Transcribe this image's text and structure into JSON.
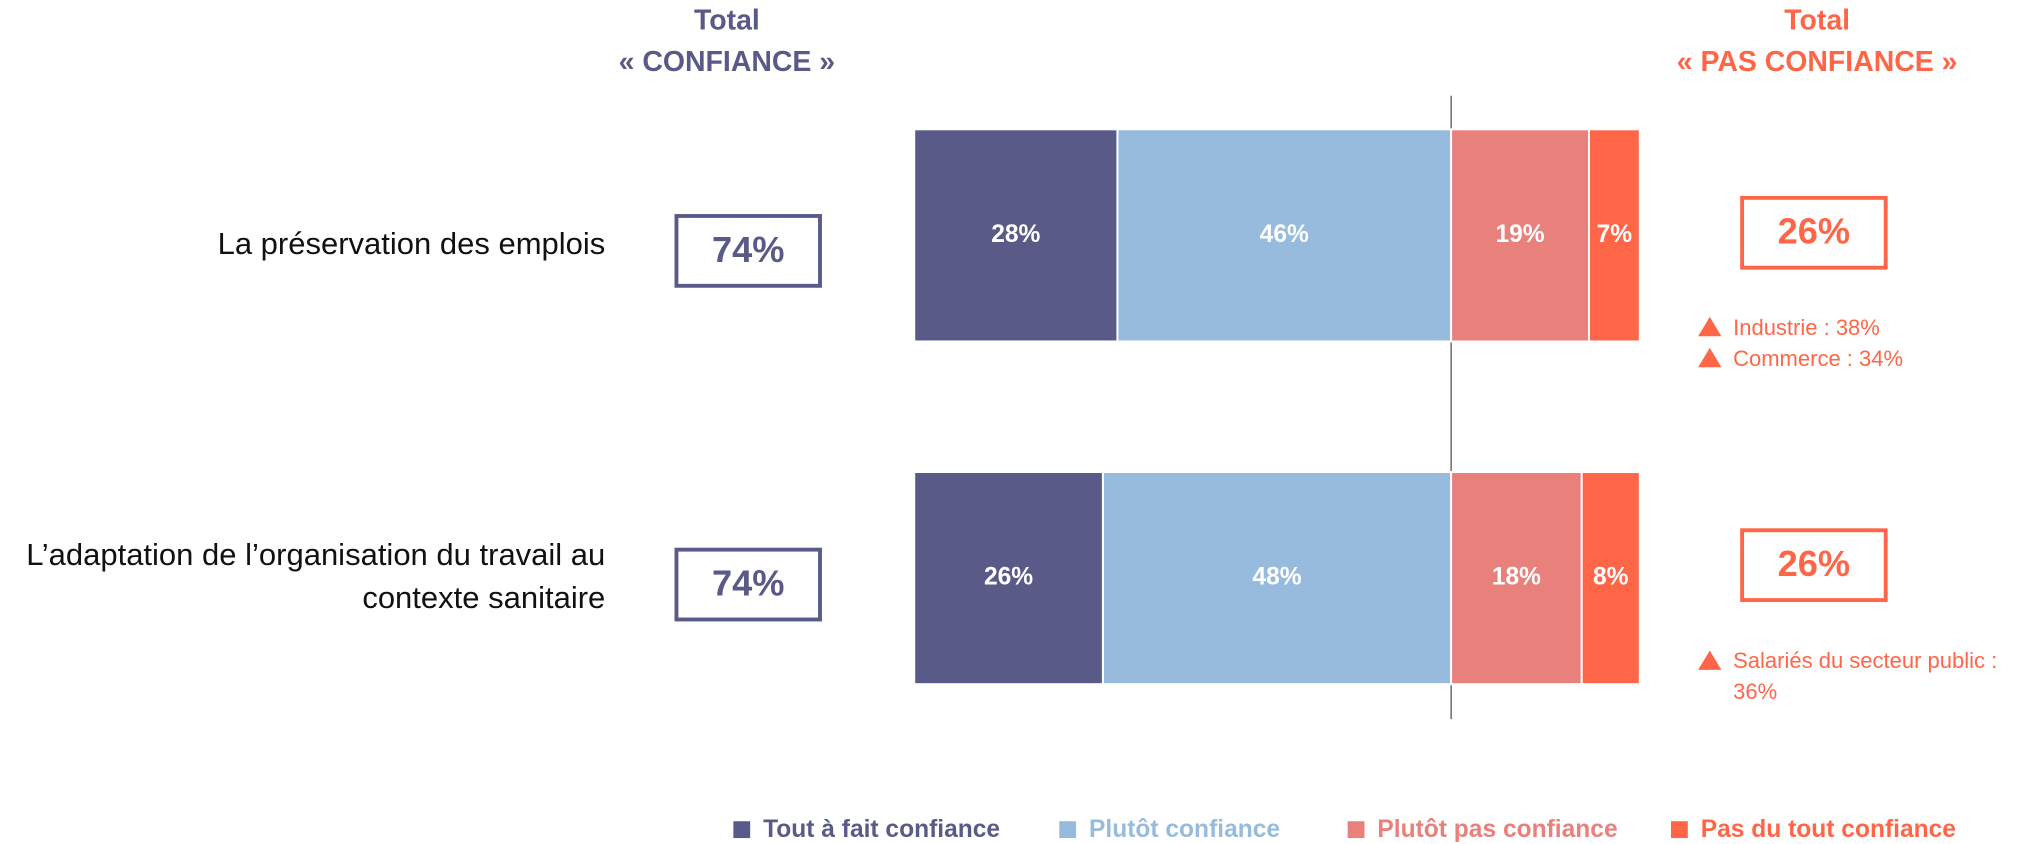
{
  "chart_data": {
    "type": "diverging_bar",
    "categories": [
      "La préservation des emplois",
      "L’adaptation de l’organisation du travail au contexte sanitaire"
    ],
    "series": [
      {
        "name": "Tout à fait confiance",
        "color": "#5a5a88",
        "side": "left",
        "values": [
          28,
          26
        ],
        "value_labels": [
          "28%",
          "26%"
        ]
      },
      {
        "name": "Plutôt confiance",
        "color": "#97bbdc",
        "side": "left",
        "values": [
          46,
          48
        ],
        "value_labels": [
          "46%",
          "48%"
        ]
      },
      {
        "name": "Plutôt pas confiance",
        "color": "#e8807c",
        "side": "right",
        "values": [
          19,
          18
        ],
        "value_labels": [
          "19%",
          "18%"
        ]
      },
      {
        "name": "Pas du tout confiance",
        "color": "#ff6647",
        "side": "right",
        "values": [
          7,
          8
        ],
        "value_labels": [
          "7%",
          "8%"
        ]
      }
    ],
    "totals": [
      {
        "title": "Total",
        "subtitle": "« CONFIANCE »",
        "color": "#5a5a88",
        "side": "left",
        "values": [
          74,
          74
        ],
        "value_labels": [
          "74%",
          "74%"
        ]
      },
      {
        "title": "Total",
        "subtitle": "« PAS CONFIANCE »",
        "color": "#ff6647",
        "side": "right",
        "values": [
          26,
          26
        ],
        "value_labels": [
          "26%",
          "26%"
        ]
      }
    ],
    "annotations": [
      [
        "Industrie : 38%",
        "Commerce : 34%"
      ],
      [
        "Salariés du secteur public : 36%"
      ]
    ]
  }
}
